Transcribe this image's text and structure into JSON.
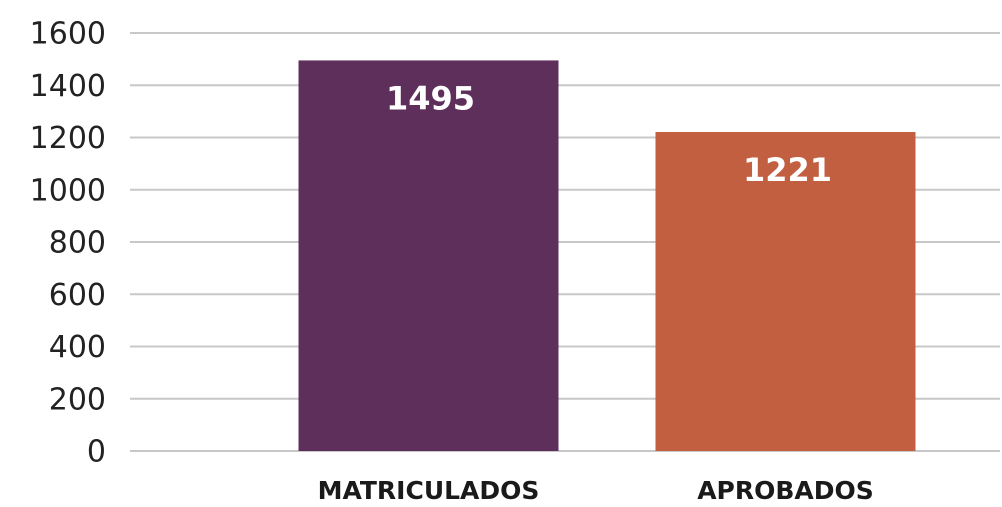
{
  "chart_data": {
    "type": "bar",
    "categories": [
      "MATRICULADOS",
      "APROBADOS"
    ],
    "values": [
      1495,
      1221
    ],
    "colors": [
      "#5f2f5b",
      "#c15f40"
    ],
    "ylim": [
      0,
      1600
    ],
    "yticks": [
      0,
      200,
      400,
      600,
      800,
      1000,
      1200,
      1400,
      1600
    ],
    "grid": true
  }
}
